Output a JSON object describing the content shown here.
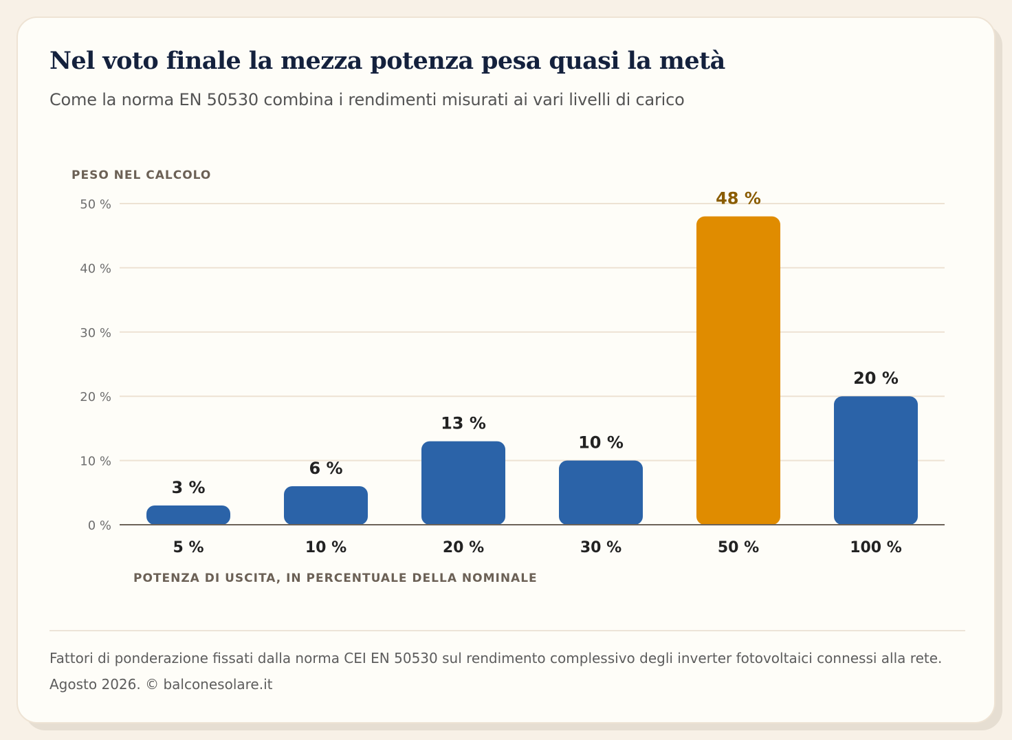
{
  "title": "Nel voto finale la mezza potenza pesa quasi la metà",
  "subtitle": "Come la norma EN 50530 combina i rendimenti misurati ai vari livelli di carico",
  "footnote": "Fattori di ponderazione fissati dalla norma CEI EN 50530 sul rendimento complessivo degli inverter fotovoltaici connessi alla rete. Agosto 2026. © balconesolare.it",
  "colors": {
    "bar_default": "#2b63a8",
    "bar_highlight": "#e08c00",
    "label_default": "#222222",
    "label_highlight": "#8a5c00",
    "grid": "#ede2d3",
    "baseline": "#6b6258",
    "axis_title": "#6b6055",
    "tick_text": "#6e6e6e"
  },
  "chart_data": {
    "type": "bar",
    "title": "",
    "xlabel": "POTENZA DI USCITA, IN PERCENTUALE DELLA NOMINALE",
    "ylabel": "PESO NEL CALCOLO",
    "categories": [
      "5 %",
      "10 %",
      "20 %",
      "30 %",
      "50 %",
      "100 %"
    ],
    "values": [
      3,
      6,
      13,
      10,
      48,
      20
    ],
    "value_labels": [
      "3 %",
      "6 %",
      "13 %",
      "10 %",
      "48 %",
      "20 %"
    ],
    "highlight_index": 4,
    "ylim": [
      0,
      50
    ],
    "yticks": [
      0,
      10,
      20,
      30,
      40,
      50
    ],
    "ytick_labels": [
      "0 %",
      "10 %",
      "20 %",
      "30 %",
      "40 %",
      "50 %"
    ],
    "grid": true,
    "legend": "none"
  }
}
